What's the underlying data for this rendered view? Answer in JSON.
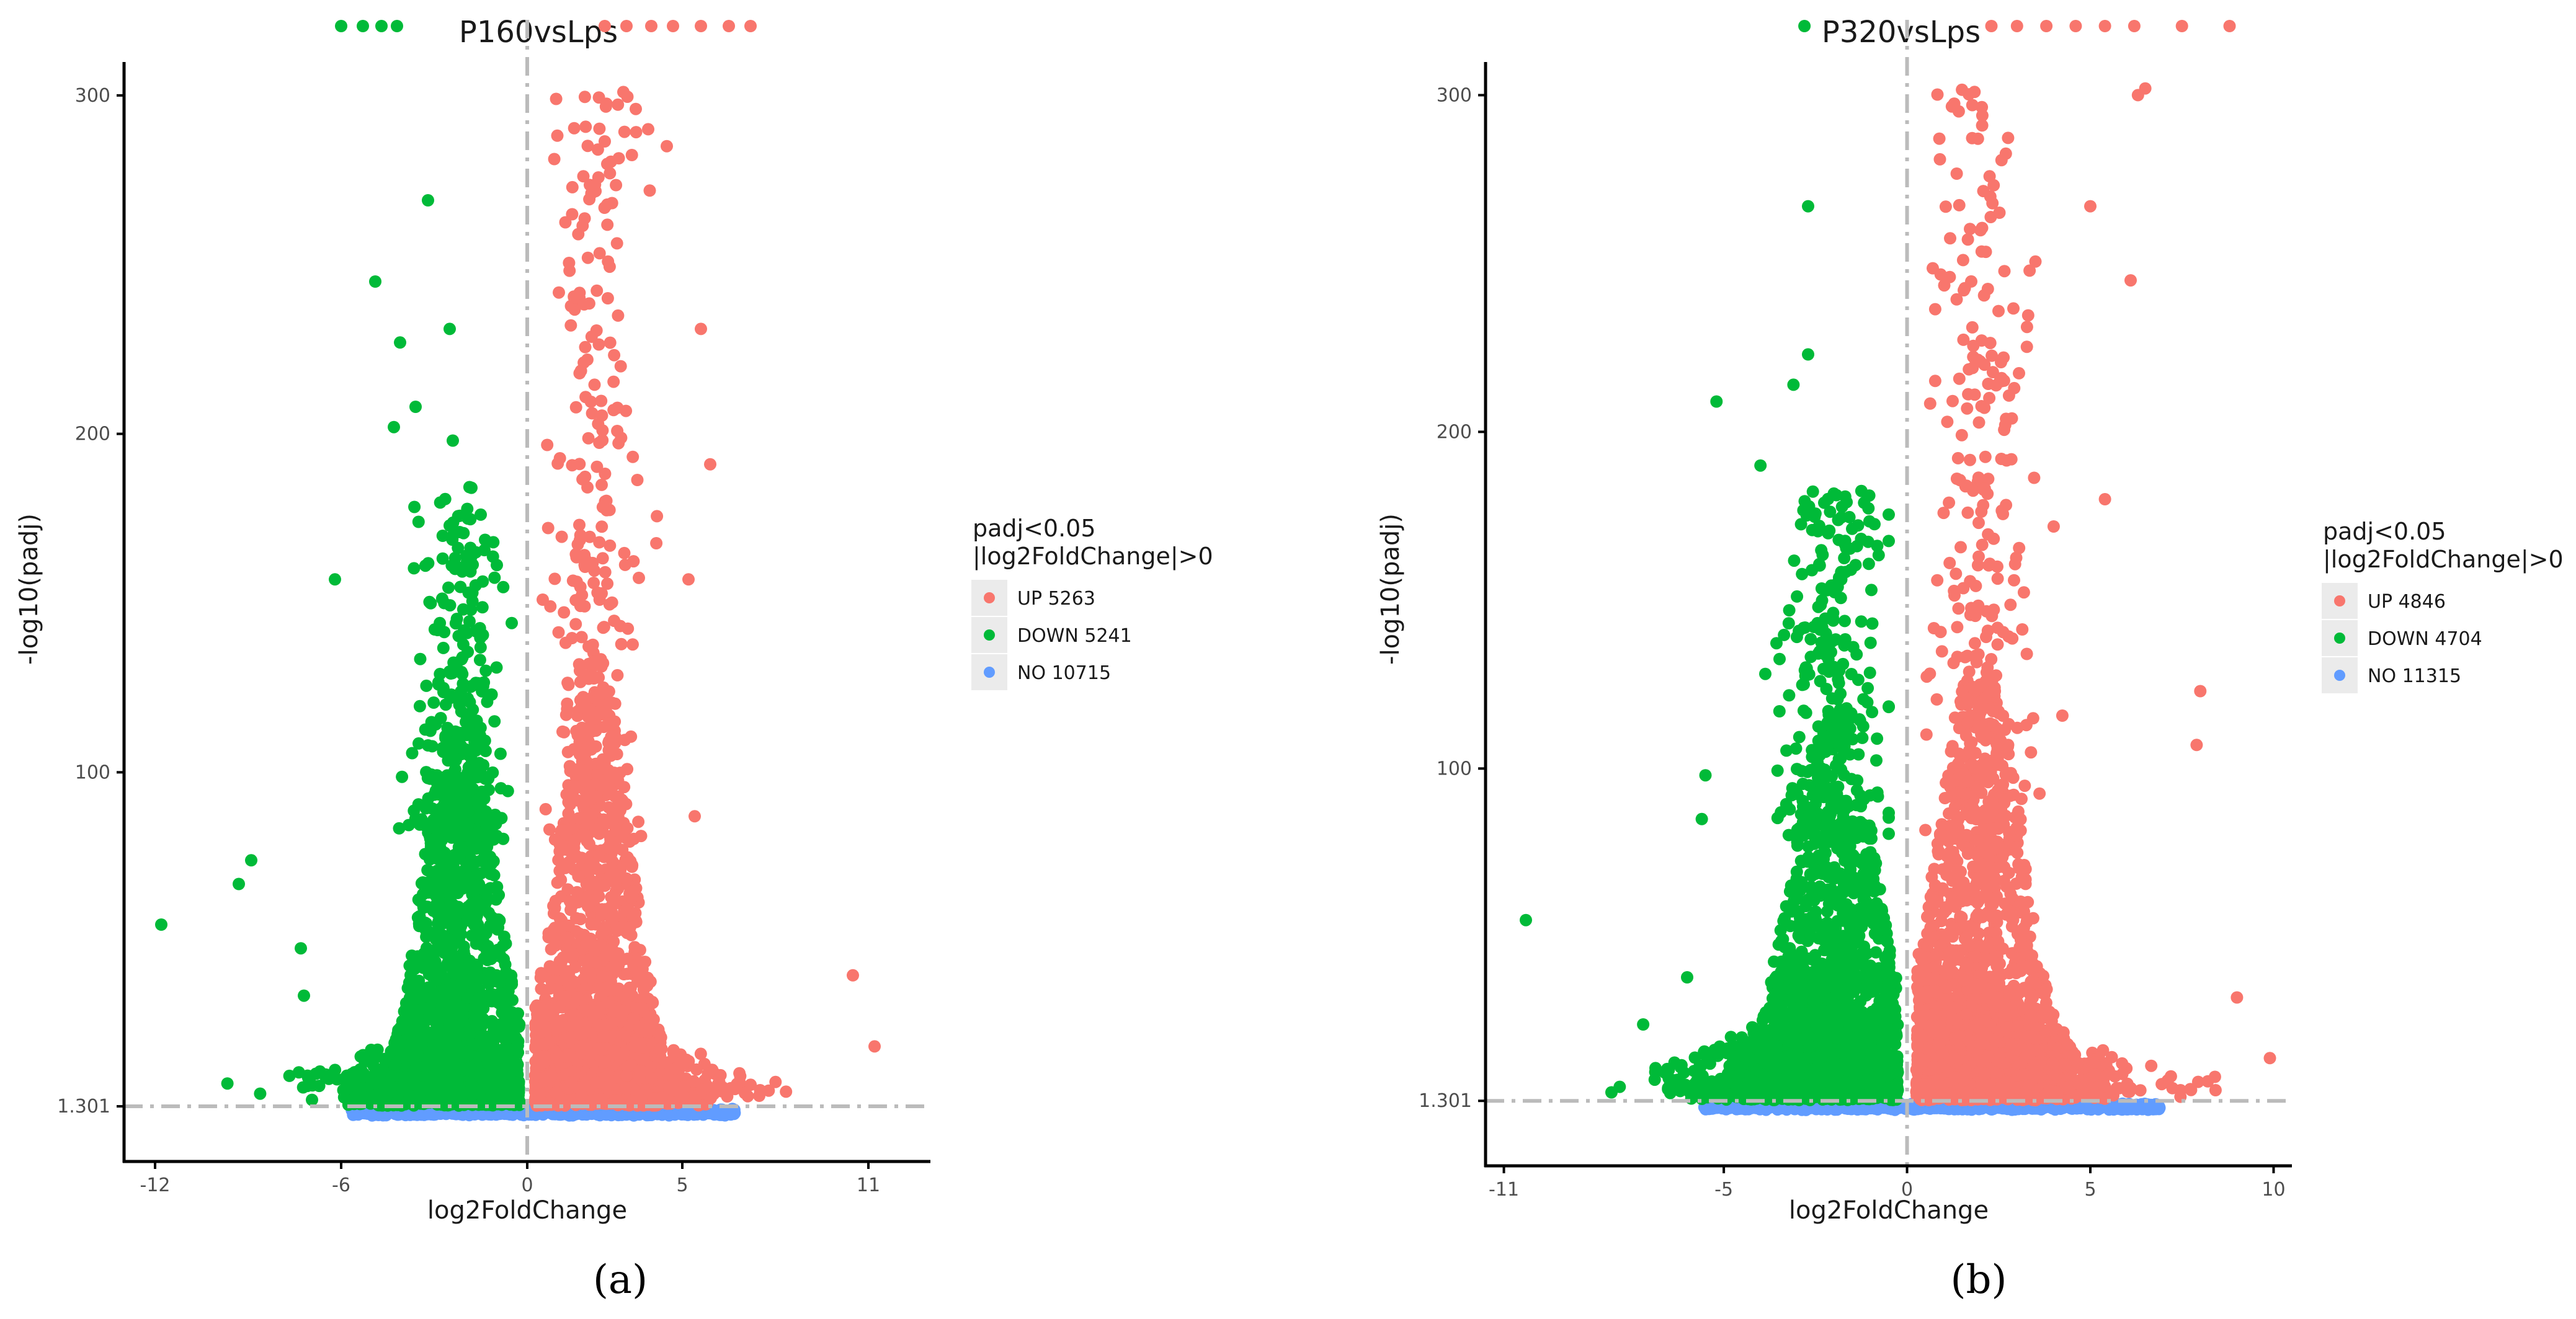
{
  "colors": {
    "up": "#F8766D",
    "down": "#00BA38",
    "no": "#619CFF",
    "threshold": "#BBBBBB",
    "legend_key_bg": "#EBEBEB",
    "axis": "#000000"
  },
  "chart_data": [
    {
      "type": "scatter",
      "panel_label": "(a)",
      "title": "P160vsLps",
      "xlabel": "log2FoldChange",
      "ylabel": "-log10(padj)",
      "xlim": [
        -13,
        13
      ],
      "ylim": [
        -15,
        315
      ],
      "x_ticks": [
        {
          "value": -12,
          "label": "-12"
        },
        {
          "value": -6,
          "label": "-6"
        },
        {
          "value": 0,
          "label": "0"
        },
        {
          "value": 5,
          "label": "5"
        },
        {
          "value": 11,
          "label": "11"
        }
      ],
      "y_ticks": [
        {
          "value": 1.301,
          "label": "1.301"
        },
        {
          "value": 100,
          "label": "100"
        },
        {
          "value": 200,
          "label": "200"
        },
        {
          "value": 300,
          "label": "300"
        }
      ],
      "vline_x": 0,
      "hline_y": 1.301,
      "legend": {
        "title_line1": "padj<0.05",
        "title_line2": "|log2FoldChange|>0",
        "entries": [
          {
            "key": "up",
            "label": "UP 5263"
          },
          {
            "key": "down",
            "label": "DOWN 5241"
          },
          {
            "key": "no",
            "label": "NO 10715"
          }
        ]
      },
      "series": [
        {
          "name": "UP",
          "count": 5263,
          "x_range": [
            0.3,
            11
          ],
          "x_center": 2.2,
          "y_max": 300
        },
        {
          "name": "DOWN",
          "count": 5241,
          "x_range": [
            -12,
            -0.3
          ],
          "x_center": -2.2,
          "y_max": 270
        },
        {
          "name": "NO",
          "count": 10715,
          "x_range": [
            -5.7,
            6.7
          ],
          "y_max": 1.3
        }
      ],
      "notable_points": [
        {
          "x": -11.8,
          "y": 55,
          "group": "down"
        },
        {
          "x": -9.3,
          "y": 67,
          "group": "down"
        },
        {
          "x": -8.9,
          "y": 74,
          "group": "down"
        },
        {
          "x": -7.3,
          "y": 48,
          "group": "down"
        },
        {
          "x": -7.2,
          "y": 34,
          "group": "down"
        },
        {
          "x": -6.2,
          "y": 157,
          "group": "down"
        },
        {
          "x": -4.9,
          "y": 245,
          "group": "down"
        },
        {
          "x": -4.1,
          "y": 227,
          "group": "down"
        },
        {
          "x": -3.2,
          "y": 269,
          "group": "down"
        },
        {
          "x": -2.5,
          "y": 231,
          "group": "down"
        },
        {
          "x": -2.4,
          "y": 198,
          "group": "down"
        },
        {
          "x": -3.6,
          "y": 208,
          "group": "down"
        },
        {
          "x": -4.3,
          "y": 202,
          "group": "down"
        },
        {
          "x": 3.1,
          "y": 301,
          "group": "up"
        },
        {
          "x": 3.5,
          "y": 296,
          "group": "up"
        },
        {
          "x": 3.9,
          "y": 290,
          "group": "up"
        },
        {
          "x": 4.5,
          "y": 285,
          "group": "up"
        },
        {
          "x": 5.6,
          "y": 231,
          "group": "up"
        },
        {
          "x": 5.9,
          "y": 191,
          "group": "up"
        },
        {
          "x": 5.2,
          "y": 157,
          "group": "up"
        },
        {
          "x": 5.4,
          "y": 87,
          "group": "up"
        },
        {
          "x": 10.5,
          "y": 40,
          "group": "up"
        },
        {
          "x": 11.2,
          "y": 19,
          "group": "up"
        }
      ],
      "saturated_points": [
        {
          "x": -6.0,
          "group": "down"
        },
        {
          "x": -5.3,
          "group": "down"
        },
        {
          "x": -4.7,
          "group": "down"
        },
        {
          "x": -4.2,
          "group": "down"
        },
        {
          "x": 2.5,
          "group": "up"
        },
        {
          "x": 3.2,
          "group": "up"
        },
        {
          "x": 4.0,
          "group": "up"
        },
        {
          "x": 4.7,
          "group": "up"
        },
        {
          "x": 5.6,
          "group": "up"
        },
        {
          "x": 6.5,
          "group": "up"
        },
        {
          "x": 7.2,
          "group": "up"
        }
      ]
    },
    {
      "type": "scatter",
      "panel_label": "(b)",
      "title": "P320vsLps",
      "xlabel": "log2FoldChange",
      "ylabel": "-log10(padj)",
      "xlim": [
        -11.5,
        10.5
      ],
      "ylim": [
        -18,
        315
      ],
      "x_ticks": [
        {
          "value": -11,
          "label": "-11"
        },
        {
          "value": -5,
          "label": "-5"
        },
        {
          "value": 0,
          "label": "0"
        },
        {
          "value": 5,
          "label": "5"
        },
        {
          "value": 10,
          "label": "10"
        }
      ],
      "y_ticks": [
        {
          "value": 1.301,
          "label": "1.301"
        },
        {
          "value": 100,
          "label": "100"
        },
        {
          "value": 200,
          "label": "200"
        },
        {
          "value": 300,
          "label": "300"
        }
      ],
      "vline_x": 0,
      "hline_y": 1.301,
      "legend": {
        "title_line1": "padj<0.05",
        "title_line2": "|log2FoldChange|>0",
        "entries": [
          {
            "key": "up",
            "label": "UP 4846"
          },
          {
            "key": "down",
            "label": "DOWN 4704"
          },
          {
            "key": "no",
            "label": "NO 11315"
          }
        ]
      },
      "series": [
        {
          "name": "UP",
          "count": 4846,
          "x_range": [
            0.3,
            9.8
          ],
          "x_center": 2.0,
          "y_max": 302
        },
        {
          "name": "DOWN",
          "count": 4704,
          "x_range": [
            -10.5,
            -0.3
          ],
          "x_center": -2.0,
          "y_max": 268
        },
        {
          "name": "NO",
          "count": 11315,
          "x_range": [
            -5.6,
            6.9
          ],
          "y_max": 1.3
        }
      ],
      "notable_points": [
        {
          "x": -10.4,
          "y": 55,
          "group": "down"
        },
        {
          "x": -7.2,
          "y": 24,
          "group": "down"
        },
        {
          "x": -6.0,
          "y": 38,
          "group": "down"
        },
        {
          "x": -5.6,
          "y": 85,
          "group": "down"
        },
        {
          "x": -5.5,
          "y": 98,
          "group": "down"
        },
        {
          "x": -5.2,
          "y": 209,
          "group": "down"
        },
        {
          "x": -2.7,
          "y": 267,
          "group": "down"
        },
        {
          "x": -3.1,
          "y": 214,
          "group": "down"
        },
        {
          "x": -2.7,
          "y": 223,
          "group": "down"
        },
        {
          "x": -4.0,
          "y": 190,
          "group": "down"
        },
        {
          "x": 6.5,
          "y": 302,
          "group": "up"
        },
        {
          "x": 6.3,
          "y": 300,
          "group": "up"
        },
        {
          "x": 5.0,
          "y": 267,
          "group": "up"
        },
        {
          "x": 6.1,
          "y": 245,
          "group": "up"
        },
        {
          "x": 5.4,
          "y": 180,
          "group": "up"
        },
        {
          "x": 8.0,
          "y": 123,
          "group": "up"
        },
        {
          "x": 7.9,
          "y": 107,
          "group": "up"
        },
        {
          "x": 9.0,
          "y": 32,
          "group": "up"
        },
        {
          "x": 9.9,
          "y": 14,
          "group": "up"
        }
      ],
      "saturated_points": [
        {
          "x": -2.8,
          "group": "down"
        },
        {
          "x": 2.3,
          "group": "up"
        },
        {
          "x": 3.0,
          "group": "up"
        },
        {
          "x": 3.8,
          "group": "up"
        },
        {
          "x": 4.6,
          "group": "up"
        },
        {
          "x": 5.4,
          "group": "up"
        },
        {
          "x": 6.2,
          "group": "up"
        },
        {
          "x": 7.5,
          "group": "up"
        },
        {
          "x": 8.8,
          "group": "up"
        }
      ]
    }
  ]
}
